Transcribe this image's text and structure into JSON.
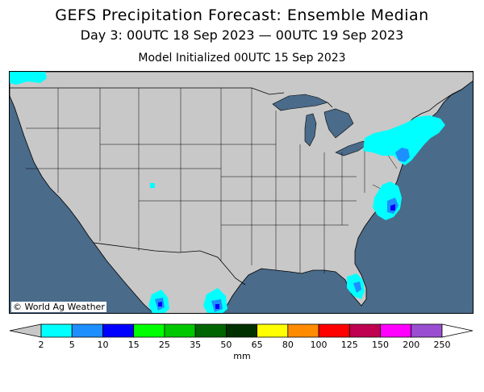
{
  "header": {
    "title": "GEFS Precipitation Forecast: Ensemble Median",
    "valid_period": "Day 3: 00UTC 18 Sep 2023 — 00UTC 19 Sep 2023",
    "initialized": "Model Initialized 00UTC 15 Sep 2023"
  },
  "map": {
    "credit": "© World Ag Weather",
    "ocean_color": "#4a6b8a",
    "land_color": "#c8c8c8",
    "precip_regions": [
      {
        "area": "Northeast US / New England",
        "level_mm": "2-5"
      },
      {
        "area": "Mid-Atlantic coast",
        "level_mm": "2-10"
      },
      {
        "area": "North Carolina coast",
        "level_mm": "5-15"
      },
      {
        "area": "Southern Florida",
        "level_mm": "2-15"
      },
      {
        "area": "Northwest corner (British Columbia coast)",
        "level_mm": "2-5"
      },
      {
        "area": "Western Mexico (Sinaloa/Durango)",
        "level_mm": "2-15"
      },
      {
        "area": "Northeast Mexico (Tamaulipas)",
        "level_mm": "2-15"
      }
    ]
  },
  "legend": {
    "ticks": [
      "2",
      "5",
      "10",
      "15",
      "25",
      "35",
      "50",
      "65",
      "80",
      "100",
      "125",
      "150",
      "200",
      "250"
    ],
    "colors": [
      "#00ffff",
      "#1e8fff",
      "#0000ff",
      "#00ff00",
      "#00c800",
      "#006400",
      "#003000",
      "#ffff00",
      "#ff8c00",
      "#ff0000",
      "#c00050",
      "#ff00ff",
      "#9a4fd0"
    ],
    "under_color": "#c8c8c8",
    "over_color": "#ffffff",
    "units": "mm"
  }
}
